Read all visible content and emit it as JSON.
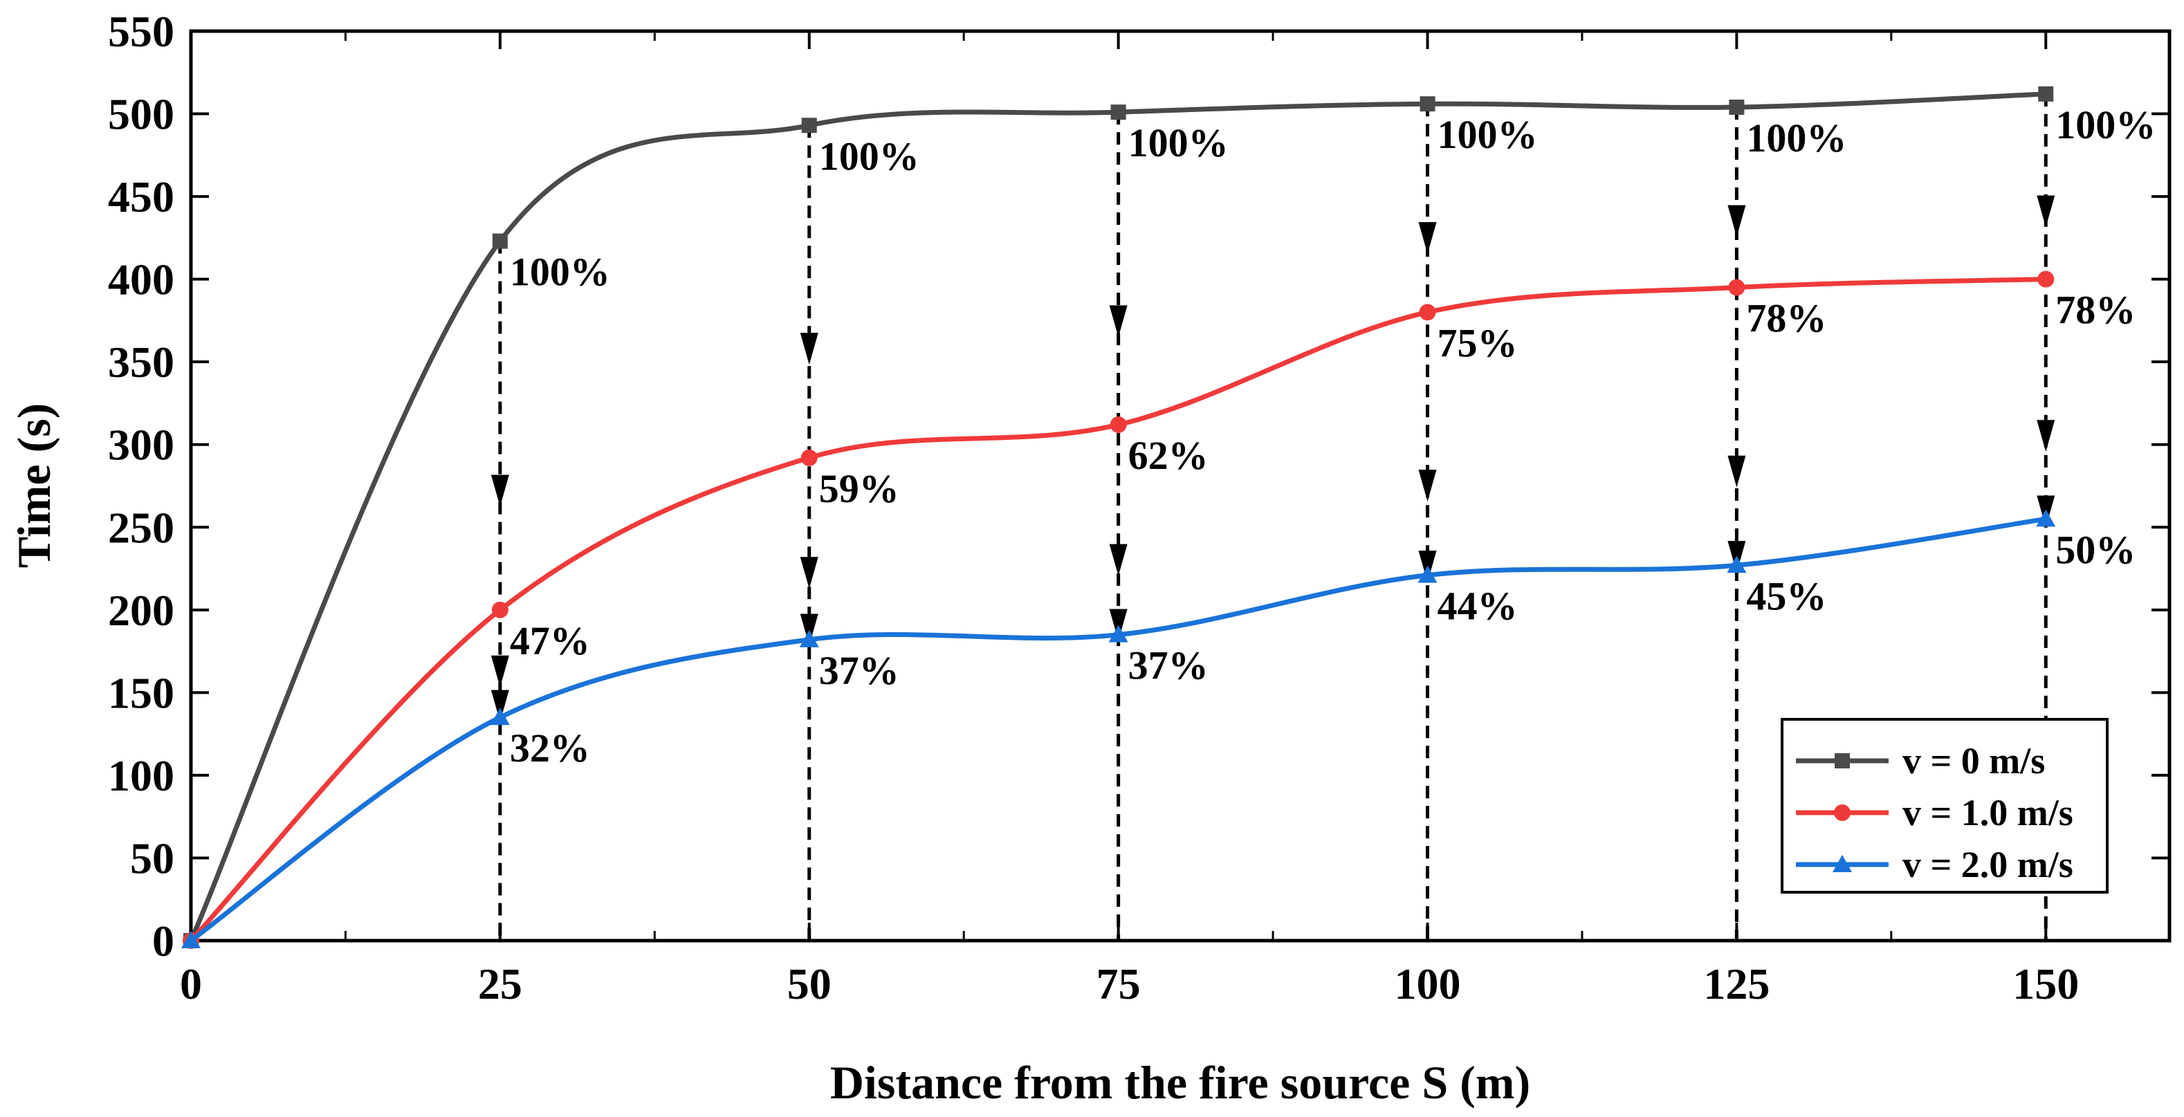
{
  "chart_data": {
    "type": "line",
    "xlabel": "Distance from the fire source S (m)",
    "ylabel": "Time (s)",
    "xlim": [
      0,
      160
    ],
    "ylim": [
      0,
      550
    ],
    "x_ticks": [
      0,
      25,
      50,
      75,
      100,
      125,
      150
    ],
    "y_ticks": [
      0,
      50,
      100,
      150,
      200,
      250,
      300,
      350,
      400,
      450,
      500,
      550
    ],
    "grid": false,
    "legend_position": "bottom-right",
    "x": [
      0,
      25,
      50,
      75,
      100,
      125,
      150
    ],
    "series": [
      {
        "name": "v = 0 m/s",
        "color": "#4a4a4a",
        "marker": "square",
        "values": [
          0,
          423,
          493,
          501,
          506,
          504,
          512
        ],
        "labels": [
          "",
          "100%",
          "100%",
          "100%",
          "100%",
          "100%",
          "100%"
        ]
      },
      {
        "name": "v = 1.0 m/s",
        "color": "#f03a3a",
        "marker": "circle",
        "values": [
          0,
          200,
          292,
          312,
          380,
          395,
          400
        ],
        "labels": [
          "",
          "47%",
          "59%",
          "62%",
          "75%",
          "78%",
          "78%"
        ]
      },
      {
        "name": "v = 2.0 m/s",
        "color": "#1a73d9",
        "marker": "triangle",
        "values": [
          0,
          135,
          182,
          185,
          221,
          227,
          255
        ],
        "labels": [
          "",
          "32%",
          "37%",
          "37%",
          "44%",
          "45%",
          "50%"
        ]
      }
    ],
    "dashed_arrows_at_x": [
      25,
      50,
      75,
      100,
      125,
      150
    ]
  }
}
